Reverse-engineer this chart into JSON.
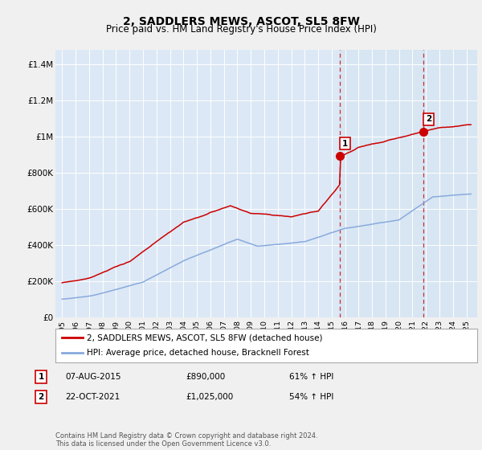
{
  "title": "2, SADDLERS MEWS, ASCOT, SL5 8FW",
  "subtitle": "Price paid vs. HM Land Registry's House Price Index (HPI)",
  "ylabel_ticks": [
    "£0",
    "£200K",
    "£400K",
    "£600K",
    "£800K",
    "£1M",
    "£1.2M",
    "£1.4M"
  ],
  "ytick_vals": [
    0,
    200000,
    400000,
    600000,
    800000,
    1000000,
    1200000,
    1400000
  ],
  "ylim": [
    0,
    1480000
  ],
  "xlim_start": 1994.5,
  "xlim_end": 2025.8,
  "line_color_red": "#cc0000",
  "line_color_blue": "#88aadd",
  "sale1_date_x": 2015.6,
  "sale1_price": 890000,
  "sale2_date_x": 2021.8,
  "sale2_price": 1025000,
  "legend_line1": "2, SADDLERS MEWS, ASCOT, SL5 8FW (detached house)",
  "legend_line2": "HPI: Average price, detached house, Bracknell Forest",
  "table_row1": [
    "1",
    "07-AUG-2015",
    "£890,000",
    "61% ↑ HPI"
  ],
  "table_row2": [
    "2",
    "22-OCT-2021",
    "£1,025,000",
    "54% ↑ HPI"
  ],
  "footer": "Contains HM Land Registry data © Crown copyright and database right 2024.\nThis data is licensed under the Open Government Licence v3.0.",
  "bg_color": "#dce8f5",
  "fig_bg": "#f0f0f0",
  "title_fontsize": 10,
  "subtitle_fontsize": 8.5
}
